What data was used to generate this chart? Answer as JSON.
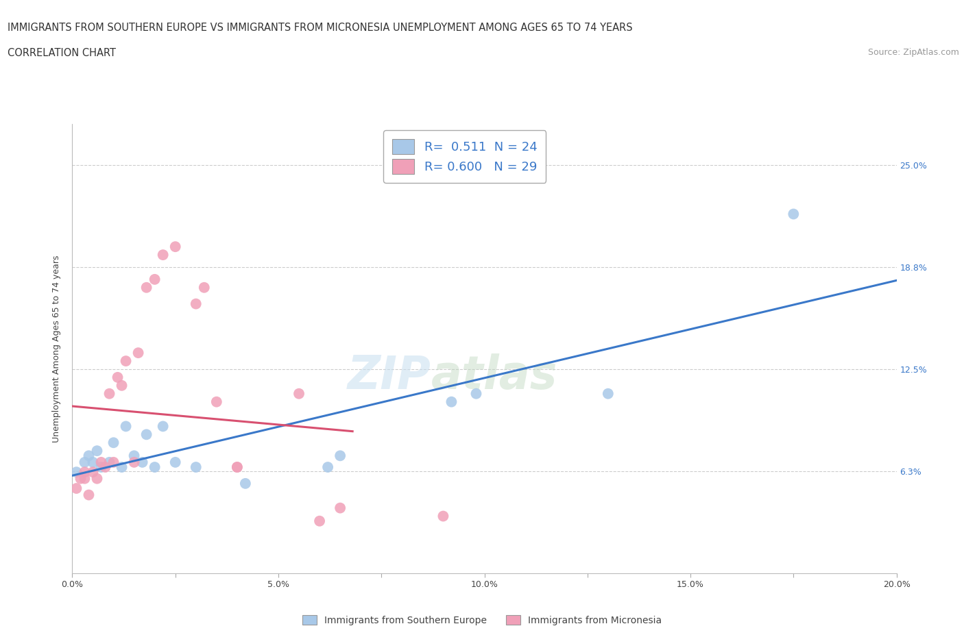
{
  "title_line1": "IMMIGRANTS FROM SOUTHERN EUROPE VS IMMIGRANTS FROM MICRONESIA UNEMPLOYMENT AMONG AGES 65 TO 74 YEARS",
  "title_line2": "CORRELATION CHART",
  "source": "Source: ZipAtlas.com",
  "ylabel": "Unemployment Among Ages 65 to 74 years",
  "xlim": [
    0.0,
    0.2
  ],
  "ylim": [
    0.0,
    0.275
  ],
  "xtick_values": [
    0.0,
    0.025,
    0.05,
    0.075,
    0.1,
    0.125,
    0.15,
    0.175,
    0.2
  ],
  "xtick_labels": [
    "0.0%",
    "",
    "5.0%",
    "",
    "10.0%",
    "",
    "15.0%",
    "",
    "20.0%"
  ],
  "ytick_values": [
    0.0,
    0.0625,
    0.125,
    0.1875,
    0.25
  ],
  "ytick_labels_right": [
    "",
    "6.3%",
    "12.5%",
    "18.8%",
    "25.0%"
  ],
  "r_blue": 0.511,
  "n_blue": 24,
  "r_pink": 0.6,
  "n_pink": 29,
  "color_blue": "#a8c8e8",
  "color_blue_line": "#3a78c9",
  "color_pink": "#f0a0b8",
  "color_pink_line": "#d85070",
  "legend_label_blue": "Immigrants from Southern Europe",
  "legend_label_pink": "Immigrants from Micronesia",
  "watermark_left": "ZIP",
  "watermark_right": "atlas",
  "grid_color": "#cccccc",
  "bg_color": "#ffffff",
  "blue_scatter_x": [
    0.001,
    0.003,
    0.004,
    0.005,
    0.006,
    0.007,
    0.009,
    0.01,
    0.012,
    0.013,
    0.015,
    0.017,
    0.018,
    0.02,
    0.022,
    0.025,
    0.03,
    0.042,
    0.062,
    0.065,
    0.092,
    0.098,
    0.13,
    0.175
  ],
  "blue_scatter_y": [
    0.062,
    0.068,
    0.072,
    0.068,
    0.075,
    0.065,
    0.068,
    0.08,
    0.065,
    0.09,
    0.072,
    0.068,
    0.085,
    0.065,
    0.09,
    0.068,
    0.065,
    0.055,
    0.065,
    0.072,
    0.105,
    0.11,
    0.11,
    0.22
  ],
  "pink_scatter_x": [
    0.001,
    0.002,
    0.003,
    0.003,
    0.004,
    0.005,
    0.006,
    0.007,
    0.008,
    0.009,
    0.01,
    0.011,
    0.012,
    0.013,
    0.015,
    0.016,
    0.018,
    0.02,
    0.022,
    0.025,
    0.03,
    0.032,
    0.035,
    0.04,
    0.04,
    0.055,
    0.06,
    0.065,
    0.09
  ],
  "pink_scatter_y": [
    0.052,
    0.058,
    0.062,
    0.058,
    0.048,
    0.062,
    0.058,
    0.068,
    0.065,
    0.11,
    0.068,
    0.12,
    0.115,
    0.13,
    0.068,
    0.135,
    0.175,
    0.18,
    0.195,
    0.2,
    0.165,
    0.175,
    0.105,
    0.065,
    0.065,
    0.11,
    0.032,
    0.04,
    0.035
  ],
  "blue_trend_x": [
    0.0,
    0.2
  ],
  "pink_trend_x": [
    0.0,
    0.068
  ]
}
